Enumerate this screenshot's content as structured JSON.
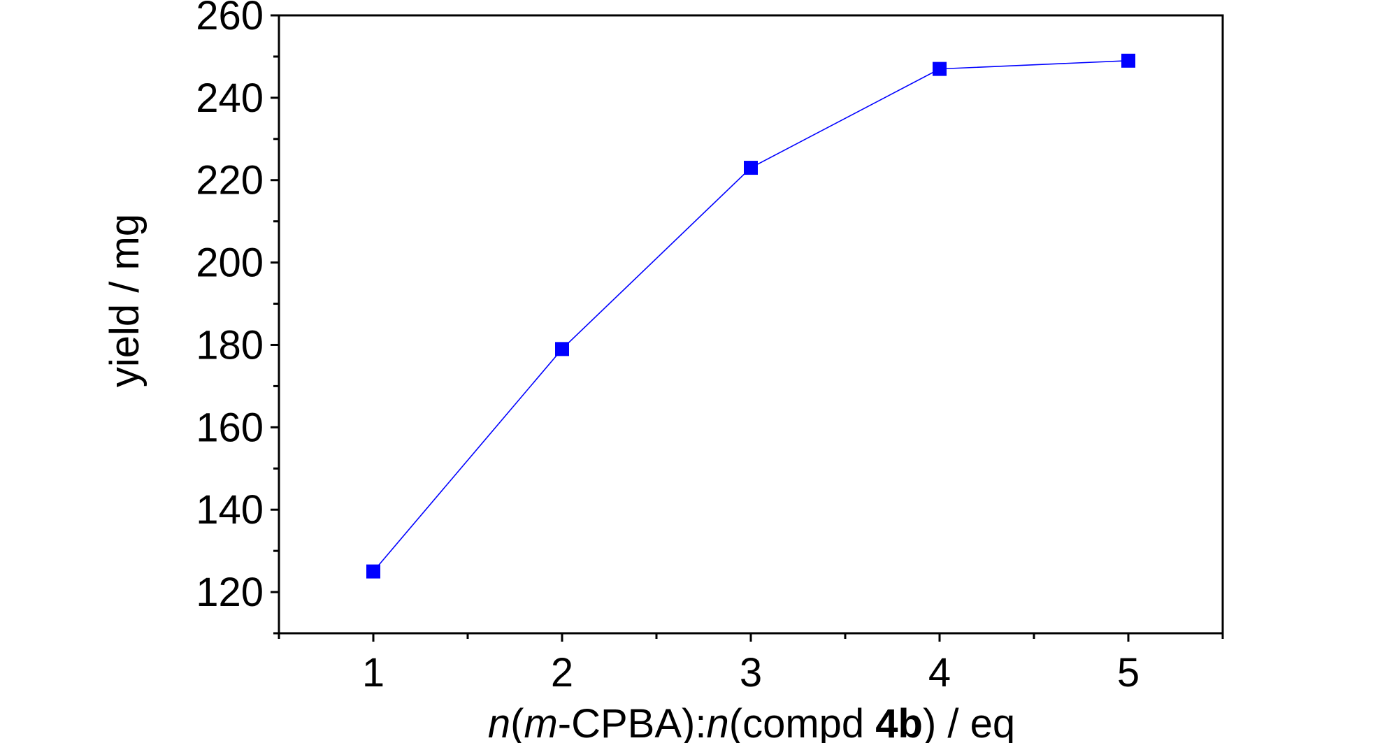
{
  "chart_data": {
    "type": "line",
    "title": "",
    "xlabel_parts": [
      {
        "text": "n",
        "style": "italic"
      },
      {
        "text": "(",
        "style": "normal"
      },
      {
        "text": "m",
        "style": "italic"
      },
      {
        "text": "-CPBA):",
        "style": "normal"
      },
      {
        "text": "n",
        "style": "italic"
      },
      {
        "text": "(compd ",
        "style": "normal"
      },
      {
        "text": "4b",
        "style": "bold"
      },
      {
        "text": ") / eq",
        "style": "normal"
      }
    ],
    "ylabel": "yield / mg",
    "xlim": [
      0.5,
      5.5
    ],
    "ylim": [
      110,
      260
    ],
    "xticks": [
      1,
      2,
      3,
      4,
      5
    ],
    "yticks": [
      120,
      140,
      160,
      180,
      200,
      220,
      240,
      260
    ],
    "x_minor_step": 0.5,
    "y_minor_step": 10,
    "grid": false,
    "legend": "none",
    "colors": {
      "series": "#0000ff",
      "axes": "#000000"
    },
    "series": [
      {
        "marker": "square",
        "x": [
          1,
          2,
          3,
          4,
          5
        ],
        "y": [
          125,
          179,
          223,
          247,
          249
        ]
      }
    ]
  }
}
